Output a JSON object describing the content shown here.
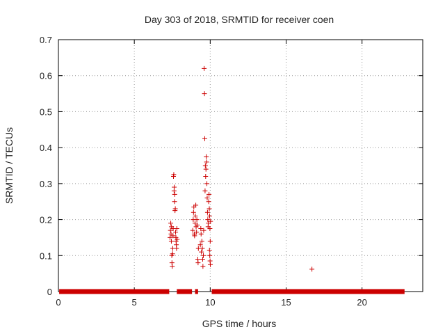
{
  "chart_data": {
    "type": "scatter",
    "title": "Day 303 of 2018, SRMTID for receiver coen",
    "xlabel": "GPS time / hours",
    "ylabel": "SRMTID / TECUs",
    "xlim": [
      0,
      24
    ],
    "ylim": [
      0,
      0.7
    ],
    "xticks": [
      0,
      5,
      10,
      15,
      20
    ],
    "yticks": [
      0,
      0.1,
      0.2,
      0.3,
      0.4,
      0.5,
      0.6,
      0.7
    ],
    "ytick_labels": [
      "0",
      "0.1",
      "0.2",
      "0.3",
      "0.4",
      "0.5",
      "0.6",
      "0.7"
    ],
    "grid": true,
    "marker_color": "#cc0000",
    "baseline_segments": [
      [
        0.05,
        7.3
      ],
      [
        7.8,
        8.8
      ],
      [
        9.0,
        9.2
      ],
      [
        10.1,
        22.8
      ]
    ],
    "points": [
      [
        7.35,
        0.15
      ],
      [
        7.38,
        0.17
      ],
      [
        7.4,
        0.19
      ],
      [
        7.42,
        0.16
      ],
      [
        7.44,
        0.14
      ],
      [
        7.45,
        0.18
      ],
      [
        7.47,
        0.1
      ],
      [
        7.48,
        0.08
      ],
      [
        7.5,
        0.07
      ],
      [
        7.52,
        0.105
      ],
      [
        7.53,
        0.12
      ],
      [
        7.55,
        0.155
      ],
      [
        7.56,
        0.175
      ],
      [
        7.58,
        0.32
      ],
      [
        7.6,
        0.325
      ],
      [
        7.62,
        0.28
      ],
      [
        7.63,
        0.29
      ],
      [
        7.65,
        0.25
      ],
      [
        7.66,
        0.27
      ],
      [
        7.68,
        0.225
      ],
      [
        7.7,
        0.23
      ],
      [
        7.72,
        0.165
      ],
      [
        7.74,
        0.15
      ],
      [
        7.75,
        0.14
      ],
      [
        7.77,
        0.13
      ],
      [
        7.78,
        0.12
      ],
      [
        7.8,
        0.175
      ],
      [
        7.82,
        0.145
      ],
      [
        8.85,
        0.17
      ],
      [
        8.88,
        0.2
      ],
      [
        8.9,
        0.22
      ],
      [
        8.92,
        0.235
      ],
      [
        8.95,
        0.16
      ],
      [
        8.97,
        0.155
      ],
      [
        9.0,
        0.19
      ],
      [
        9.02,
        0.21
      ],
      [
        9.05,
        0.24
      ],
      [
        9.07,
        0.18
      ],
      [
        9.1,
        0.165
      ],
      [
        9.12,
        0.2
      ],
      [
        9.15,
        0.185
      ],
      [
        9.18,
        0.09
      ],
      [
        9.2,
        0.08
      ],
      [
        9.22,
        0.12
      ],
      [
        9.35,
        0.13
      ],
      [
        9.38,
        0.175
      ],
      [
        9.4,
        0.16
      ],
      [
        9.42,
        0.11
      ],
      [
        9.45,
        0.14
      ],
      [
        9.48,
        0.12
      ],
      [
        9.5,
        0.09
      ],
      [
        9.52,
        0.07
      ],
      [
        9.55,
        0.1
      ],
      [
        9.57,
        0.17
      ],
      [
        9.6,
        0.62
      ],
      [
        9.62,
        0.55
      ],
      [
        9.64,
        0.425
      ],
      [
        9.66,
        0.28
      ],
      [
        9.68,
        0.35
      ],
      [
        9.7,
        0.32
      ],
      [
        9.72,
        0.34
      ],
      [
        9.74,
        0.375
      ],
      [
        9.76,
        0.36
      ],
      [
        9.78,
        0.3
      ],
      [
        9.8,
        0.26
      ],
      [
        9.82,
        0.22
      ],
      [
        9.84,
        0.2
      ],
      [
        9.86,
        0.18
      ],
      [
        9.88,
        0.19
      ],
      [
        9.9,
        0.25
      ],
      [
        9.92,
        0.27
      ],
      [
        9.94,
        0.23
      ],
      [
        9.96,
        0.21
      ],
      [
        9.98,
        0.175
      ],
      [
        10.0,
        0.14
      ],
      [
        10.02,
        0.195
      ],
      [
        9.95,
        0.115
      ],
      [
        9.97,
        0.1
      ],
      [
        9.99,
        0.085
      ],
      [
        10.01,
        0.075
      ],
      [
        16.7,
        0.062
      ]
    ]
  }
}
